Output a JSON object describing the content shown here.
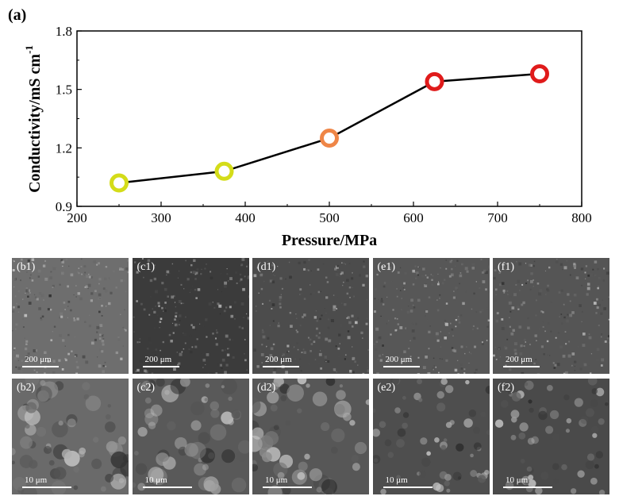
{
  "chart_data": {
    "type": "line",
    "panel_label": "(a)",
    "xlabel": "Pressure/MPa",
    "ylabel": "Conductivity/mS cm",
    "ylabel_superscript": "-1",
    "xlim": [
      200,
      800
    ],
    "ylim": [
      0.9,
      1.8
    ],
    "xticks": [
      "200",
      "300",
      "400",
      "500",
      "600",
      "700",
      "800"
    ],
    "yticks": [
      "0.9",
      "1.2",
      "1.5",
      "1.8"
    ],
    "x": [
      250,
      375,
      500,
      625,
      750
    ],
    "y": [
      1.02,
      1.08,
      1.25,
      1.54,
      1.58
    ],
    "point_colors": [
      "#d4dc19",
      "#d4dc19",
      "#ef8647",
      "#e01b1b",
      "#e01b1b"
    ],
    "line_color": "#000000",
    "grid": false
  },
  "micrographs": {
    "row1": [
      {
        "label": "(b1)",
        "scale": "200 μm",
        "tone": "#6e6e6e"
      },
      {
        "label": "(c1)",
        "scale": "200 μm",
        "tone": "#3b3b3b"
      },
      {
        "label": "(d1)",
        "scale": "200 μm",
        "tone": "#4c4c4c"
      },
      {
        "label": "(e1)",
        "scale": "200 μm",
        "tone": "#575757"
      },
      {
        "label": "(f1)",
        "scale": "200 μm",
        "tone": "#555555"
      }
    ],
    "row2": [
      {
        "label": "(b2)",
        "scale": "10 μm",
        "tone": "#6a6a6a"
      },
      {
        "label": "(c2)",
        "scale": "10 μm",
        "tone": "#595959"
      },
      {
        "label": "(d2)",
        "scale": "10 μm",
        "tone": "#575757"
      },
      {
        "label": "(e2)",
        "scale": "10 μm",
        "tone": "#4e4e4e"
      },
      {
        "label": "(f2)",
        "scale": "10 μm",
        "tone": "#4a4a4a"
      }
    ]
  }
}
